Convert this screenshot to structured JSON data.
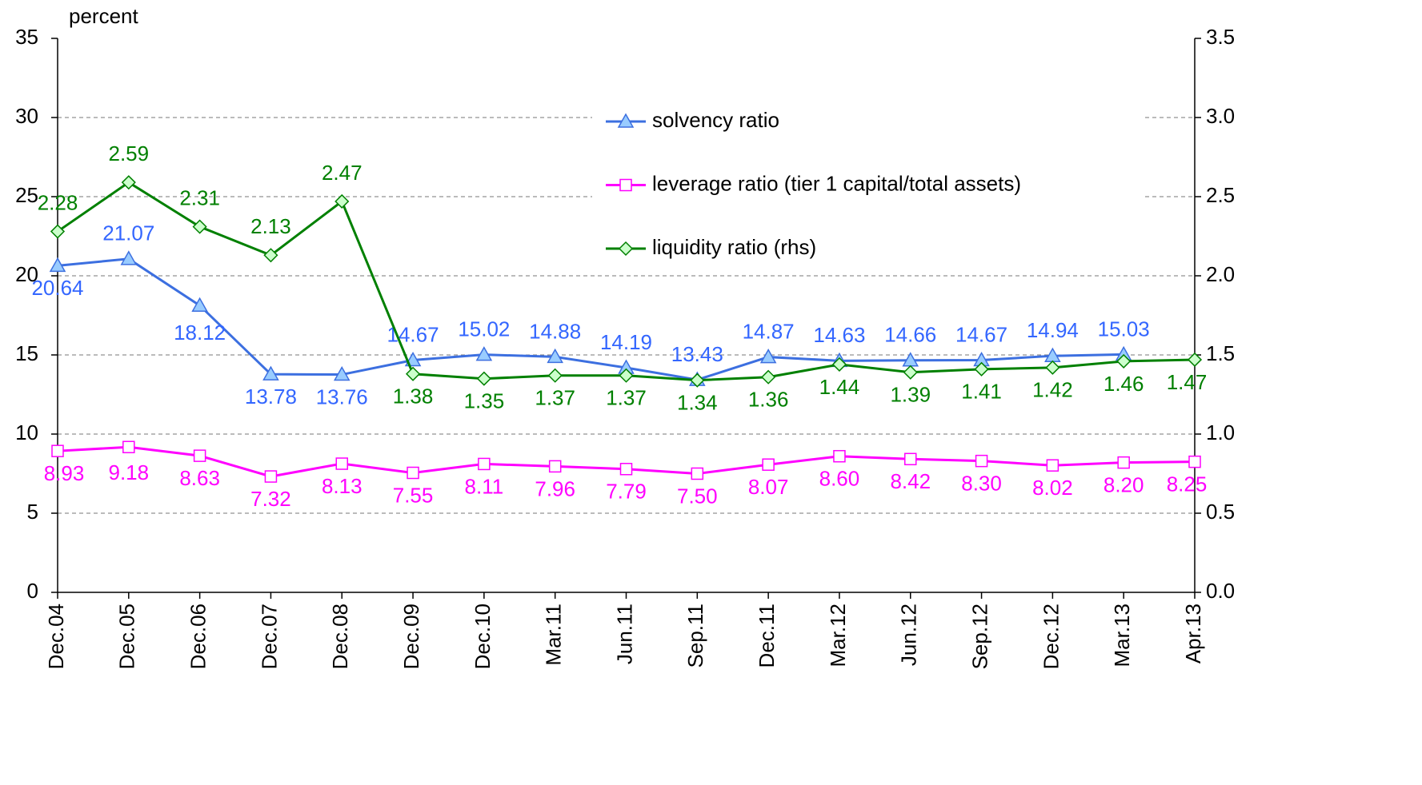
{
  "chart_data": {
    "type": "line",
    "y_label": "percent",
    "categories": [
      "Dec.04",
      "Dec.05",
      "Dec.06",
      "Dec.07",
      "Dec.08",
      "Dec.09",
      "Dec.10",
      "Mar.11",
      "Jun.11",
      "Sep.11",
      "Dec.11",
      "Mar.12",
      "Jun.12",
      "Sep.12",
      "Dec.12",
      "Mar.13",
      "Apr.13"
    ],
    "series": [
      {
        "name": "solvency ratio",
        "color": "#3c6fe0",
        "marker_fill": "#99ccff",
        "label_color": "#3366ff",
        "marker": "triangle",
        "values": [
          20.64,
          21.07,
          18.12,
          13.78,
          13.76,
          14.67,
          15.02,
          14.88,
          14.19,
          13.43,
          14.87,
          14.63,
          14.66,
          14.67,
          14.94,
          15.03,
          null
        ],
        "value_labels": [
          "20.64",
          "21.07",
          "18.12",
          "13.78",
          "13.76",
          "14.67",
          "15.02",
          "14.88",
          "14.19",
          "13.43",
          "14.87",
          "14.63",
          "14.66",
          "14.67",
          "14.94",
          "15.03",
          null
        ]
      },
      {
        "name": "leverage ratio (tier 1 capital/total assets)",
        "color": "#ff00ff",
        "marker_fill": "#ffffff",
        "label_color": "#ff00ff",
        "marker": "square",
        "values": [
          8.93,
          9.18,
          8.63,
          7.32,
          8.13,
          7.55,
          8.11,
          7.96,
          7.79,
          7.5,
          8.07,
          8.6,
          8.42,
          8.3,
          8.02,
          8.2,
          8.25
        ],
        "value_labels": [
          "8.93",
          "9.18",
          "8.63",
          "7.32",
          "8.13",
          "7.55",
          "8.11",
          "7.96",
          "7.79",
          "7.50",
          "8.07",
          "8.60",
          "8.42",
          "8.30",
          "8.02",
          "8.20",
          "8.25"
        ]
      },
      {
        "name": "liquidity ratio (rhs)",
        "color": "#008000",
        "marker_fill": "#ccffcc",
        "label_color": "#008000",
        "marker": "diamond",
        "axis": "y2",
        "values": [
          2.28,
          2.59,
          2.31,
          2.13,
          2.47,
          1.38,
          1.35,
          1.37,
          1.37,
          1.34,
          1.36,
          1.44,
          1.39,
          1.41,
          1.42,
          1.46,
          1.47
        ],
        "value_labels": [
          "2.28",
          "2.59",
          "2.31",
          "2.13",
          "2.47",
          "1.38",
          "1.35",
          "1.37",
          "1.37",
          "1.34",
          "1.36",
          "1.44",
          "1.39",
          "1.41",
          "1.42",
          "1.46",
          "1.47"
        ]
      }
    ],
    "ylim": [
      0,
      35
    ],
    "yticks": [
      0,
      5,
      10,
      15,
      20,
      25,
      30,
      35
    ],
    "y2lim": [
      0,
      3.5
    ],
    "y2ticks": [
      {
        "value": 0,
        "label": "0.0"
      },
      0.5,
      {
        "value": 1,
        "label": "1.0"
      },
      1.5,
      {
        "value": 2,
        "label": "2.0"
      },
      2.5,
      {
        "value": 3,
        "label": "3.0"
      },
      3.5
    ],
    "grid": true,
    "legend": "top-right"
  }
}
